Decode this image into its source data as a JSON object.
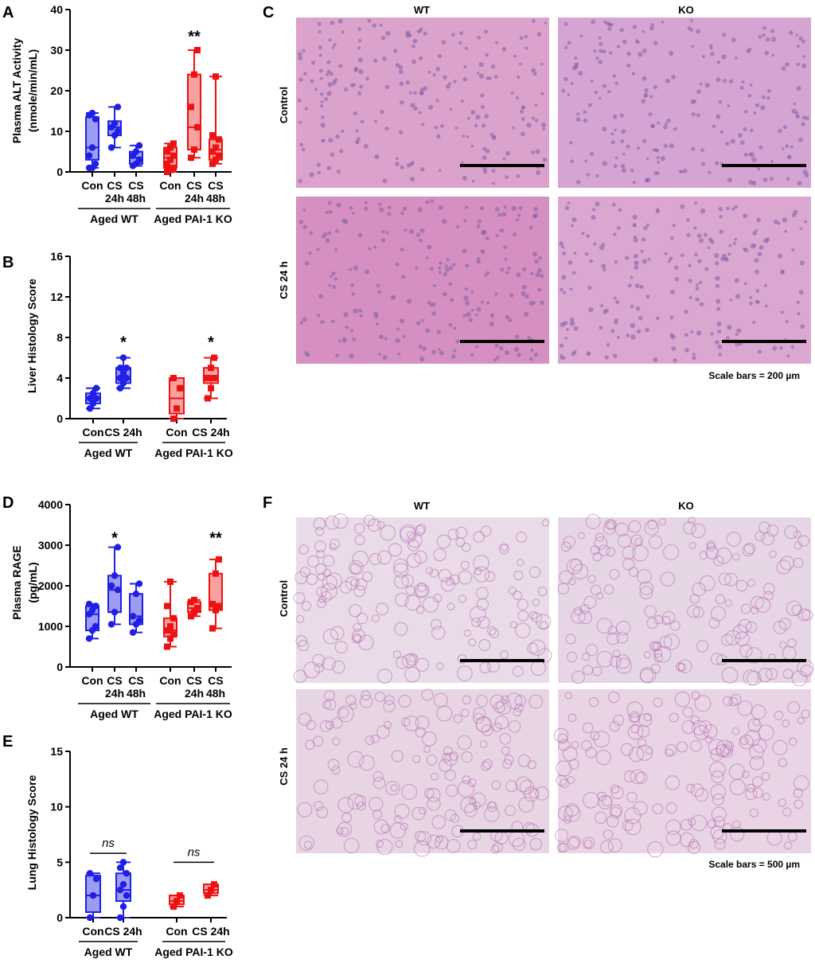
{
  "figure": {
    "panel_letters": [
      "A",
      "B",
      "C",
      "D",
      "E",
      "F"
    ],
    "colors": {
      "wt": "#1f1fe6",
      "wt_fill": "#9c9cf2",
      "ko": "#ee1111",
      "ko_fill": "#f7a1a1",
      "black": "#000000"
    }
  },
  "chart_data": [
    {
      "panel": "A",
      "type": "box",
      "ylabel_lines": [
        "Plasma ALT Activity",
        "(nmole/min/mL)"
      ],
      "ylim": [
        0,
        40
      ],
      "yticks": [
        0,
        10,
        20,
        30,
        40
      ],
      "groups": [
        {
          "name": "Aged WT",
          "color": "wt",
          "categories": [
            {
              "label": [
                "Con"
              ],
              "min": 1,
              "q1": 3,
              "median": 6,
              "q3": 13.5,
              "max": 14.5,
              "points": [
                1,
                1,
                2,
                4,
                6,
                13,
                14,
                14.5
              ]
            },
            {
              "label": [
                "CS",
                "24h"
              ],
              "min": 6,
              "q1": 9,
              "median": 11,
              "q3": 12.5,
              "max": 16,
              "points": [
                6,
                9,
                10,
                11,
                12,
                16
              ]
            },
            {
              "label": [
                "CS",
                "48h"
              ],
              "min": 1.5,
              "q1": 2,
              "median": 3.5,
              "q3": 5,
              "max": 6.5,
              "points": [
                1.5,
                2,
                3,
                4,
                5,
                6.5
              ]
            }
          ]
        },
        {
          "name": "Aged PAI-1 KO",
          "color": "ko",
          "categories": [
            {
              "label": [
                "Con"
              ],
              "min": 0,
              "q1": 1,
              "median": 3.5,
              "q3": 6,
              "max": 7,
              "points": [
                0,
                0.5,
                1,
                2,
                3,
                4,
                5,
                6,
                7
              ]
            },
            {
              "label": [
                "CS",
                "24h"
              ],
              "min": 3.5,
              "q1": 5.5,
              "median": 11,
              "q3": 24,
              "max": 30,
              "points": [
                3.5,
                5.5,
                11,
                16,
                24,
                30
              ]
            },
            {
              "label": [
                "CS",
                "48h"
              ],
              "min": 2,
              "q1": 3,
              "median": 5.5,
              "q3": 8,
              "max": 23.5,
              "points": [
                2,
                3,
                4,
                5,
                6,
                8,
                9,
                23.5
              ]
            }
          ]
        }
      ],
      "annotations": [
        {
          "text": "**",
          "group": 1,
          "category": 1,
          "y": 34
        }
      ]
    },
    {
      "panel": "B",
      "type": "box",
      "ylabel_lines": [
        "Liver Histology Score"
      ],
      "ylim": [
        0,
        16
      ],
      "yticks": [
        0,
        4,
        8,
        12,
        16
      ],
      "groups": [
        {
          "name": "Aged WT",
          "color": "wt",
          "categories": [
            {
              "label": [
                "Con"
              ],
              "min": 1,
              "q1": 1.5,
              "median": 2,
              "q3": 2.5,
              "max": 3,
              "points": [
                1,
                1.5,
                2,
                2,
                2.5,
                3
              ]
            },
            {
              "label": [
                "CS 24h"
              ],
              "min": 3,
              "q1": 3.5,
              "median": 4,
              "q3": 5,
              "max": 6,
              "points": [
                3,
                3.5,
                4,
                4,
                4.5,
                5,
                5,
                6
              ]
            }
          ]
        },
        {
          "name": "Aged PAI-1 KO",
          "color": "ko",
          "categories": [
            {
              "label": [
                "Con"
              ],
              "min": 0,
              "q1": 0.5,
              "median": 2,
              "q3": 4,
              "max": 4,
              "points": [
                0,
                1,
                3,
                4
              ]
            },
            {
              "label": [
                "CS 24h"
              ],
              "min": 2,
              "q1": 3.5,
              "median": 4,
              "q3": 5,
              "max": 6,
              "points": [
                2,
                3,
                4,
                4,
                5,
                6
              ]
            }
          ]
        }
      ],
      "annotations": [
        {
          "text": "*",
          "group": 0,
          "category": 1,
          "y": 7.8
        },
        {
          "text": "*",
          "group": 1,
          "category": 1,
          "y": 7.8
        }
      ]
    },
    {
      "panel": "D",
      "type": "box",
      "ylabel_lines": [
        "Plasma RAGE",
        "(pg/mL)"
      ],
      "ylim": [
        0,
        4000
      ],
      "yticks": [
        0,
        1000,
        2000,
        3000,
        4000
      ],
      "groups": [
        {
          "name": "Aged WT",
          "color": "wt",
          "categories": [
            {
              "label": [
                "Con"
              ],
              "min": 700,
              "q1": 900,
              "median": 1300,
              "q3": 1500,
              "max": 1550,
              "points": [
                700,
                900,
                1000,
                1300,
                1400,
                1500,
                1550
              ]
            },
            {
              "label": [
                "CS",
                "24h"
              ],
              "min": 1050,
              "q1": 1350,
              "median": 1900,
              "q3": 2250,
              "max": 2950,
              "points": [
                1050,
                1350,
                1900,
                2000,
                2250,
                2950
              ]
            },
            {
              "label": [
                "CS",
                "48h"
              ],
              "min": 850,
              "q1": 1050,
              "median": 1250,
              "q3": 1800,
              "max": 2050,
              "points": [
                850,
                1050,
                1150,
                1250,
                1800,
                2050
              ]
            }
          ]
        },
        {
          "name": "Aged PAI-1 KO",
          "color": "ko",
          "categories": [
            {
              "label": [
                "Con"
              ],
              "min": 500,
              "q1": 750,
              "median": 900,
              "q3": 1200,
              "max": 2100,
              "points": [
                500,
                700,
                800,
                900,
                1000,
                1200,
                1500,
                2100
              ]
            },
            {
              "label": [
                "CS",
                "24h"
              ],
              "min": 1250,
              "q1": 1350,
              "median": 1450,
              "q3": 1600,
              "max": 1650,
              "points": [
                1250,
                1350,
                1450,
                1600,
                1650
              ]
            },
            {
              "label": [
                "CS",
                "48h"
              ],
              "min": 950,
              "q1": 1400,
              "median": 1550,
              "q3": 2300,
              "max": 2650,
              "points": [
                950,
                1400,
                1500,
                1550,
                2300,
                2650
              ]
            }
          ]
        }
      ],
      "annotations": [
        {
          "text": "*",
          "group": 0,
          "category": 1,
          "y": 3250
        },
        {
          "text": "**",
          "group": 1,
          "category": 2,
          "y": 3250
        }
      ]
    },
    {
      "panel": "E",
      "type": "box",
      "ylabel_lines": [
        "Lung Histology Score"
      ],
      "ylim": [
        0,
        15
      ],
      "yticks": [
        0,
        5,
        10,
        15
      ],
      "groups": [
        {
          "name": "Aged WT",
          "color": "wt",
          "categories": [
            {
              "label": [
                "Con"
              ],
              "min": 0,
              "q1": 0.5,
              "median": 2,
              "q3": 3.8,
              "max": 4,
              "points": [
                0,
                2,
                3.5,
                4
              ]
            },
            {
              "label": [
                "CS 24h"
              ],
              "min": 0,
              "q1": 1.5,
              "median": 2.5,
              "q3": 4,
              "max": 5,
              "points": [
                0,
                1,
                2,
                2.5,
                3,
                4,
                4.5,
                5
              ]
            }
          ]
        },
        {
          "name": "Aged PAI-1 KO",
          "color": "ko",
          "categories": [
            {
              "label": [
                "Con"
              ],
              "min": 1,
              "q1": 1.2,
              "median": 1.5,
              "q3": 2,
              "max": 2,
              "points": [
                1,
                1.5,
                2
              ]
            },
            {
              "label": [
                "CS 24h"
              ],
              "min": 2,
              "q1": 2.2,
              "median": 2.5,
              "q3": 3,
              "max": 3,
              "points": [
                2,
                2.5,
                3
              ]
            }
          ]
        }
      ],
      "brackets": [
        {
          "text": "ns",
          "group": 0,
          "y": 5.8
        },
        {
          "text": "ns",
          "group": 1,
          "y": 5.0
        }
      ]
    }
  ],
  "histology": {
    "C": {
      "col_headers": [
        "WT",
        "KO"
      ],
      "row_headers": [
        "Control",
        "CS 24 h"
      ],
      "scale_text": "Scale bars = 200 µm",
      "tile_colors": [
        "#dba2cc",
        "#d6a4d2",
        "#d58fc0",
        "#dba7d1"
      ]
    },
    "F": {
      "col_headers": [
        "WT",
        "KO"
      ],
      "row_headers": [
        "Control",
        "CS 24 h"
      ],
      "scale_text": "Scale bars = 500 µm",
      "tile_colors": [
        "#e9dbe8",
        "#e6d6e5",
        "#e7d5e4",
        "#e8d4e4"
      ]
    }
  }
}
